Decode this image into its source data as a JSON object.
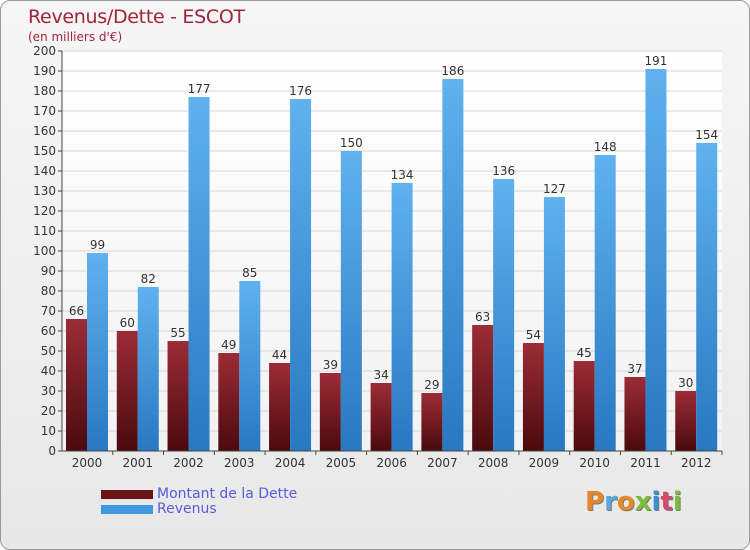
{
  "title": "Revenus/Dette - ESCOT",
  "subtitle": "(en milliers d'€)",
  "brand": "Proxiti",
  "colors": {
    "title": "#a0243a",
    "dette": "#7a1a1f",
    "revenus": "#3d98dd",
    "legend_text": "#5a5adc"
  },
  "chart_data": {
    "type": "bar",
    "categories": [
      "2000",
      "2001",
      "2002",
      "2003",
      "2004",
      "2005",
      "2006",
      "2007",
      "2008",
      "2009",
      "2010",
      "2011",
      "2012"
    ],
    "series": [
      {
        "name": "Montant de la Dette",
        "values": [
          66,
          60,
          55,
          49,
          44,
          39,
          34,
          29,
          63,
          54,
          45,
          37,
          30
        ]
      },
      {
        "name": "Revenus",
        "values": [
          99,
          82,
          177,
          85,
          176,
          150,
          134,
          186,
          136,
          127,
          148,
          191,
          154
        ]
      }
    ],
    "ylim": [
      0,
      200
    ],
    "ytick_step": 10,
    "grid": true,
    "legend_position": "bottom-left",
    "show_data_labels": true
  }
}
